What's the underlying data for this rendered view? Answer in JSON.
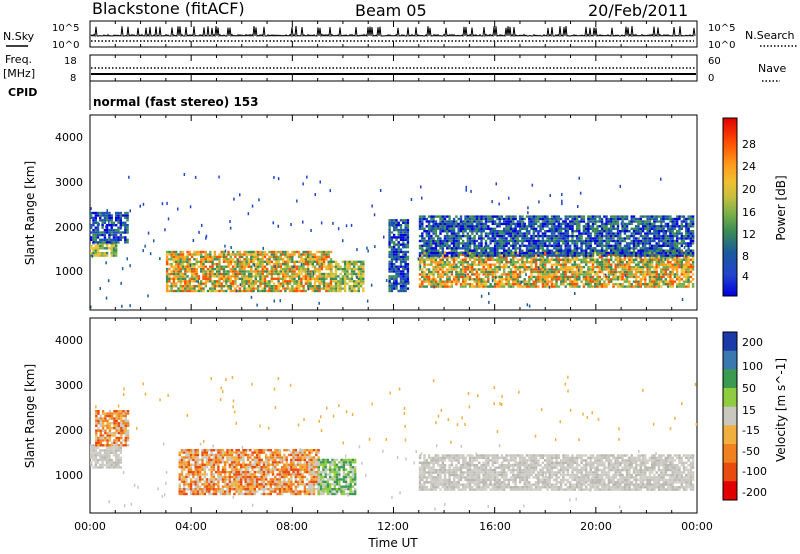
{
  "header": {
    "station": "Blackstone (fitACF)",
    "beam": "Beam 05",
    "date": "20/Feb/2011"
  },
  "panels": {
    "nsky": {
      "label": "N.Sky",
      "ticks": [
        "10^5",
        "10^0"
      ],
      "right_label": "N.Search",
      "right_ticks": [
        "10^5",
        "10^0"
      ]
    },
    "freq": {
      "label_line1": "Freq.",
      "label_line2": "[MHz]",
      "ticks": [
        "18",
        "8"
      ],
      "right_label": "Nave",
      "right_ticks": [
        "60",
        "0"
      ]
    },
    "cpid": {
      "label": "CPID",
      "text": "normal (fast stereo) 153"
    }
  },
  "chart_data": [
    {
      "type": "heatmap",
      "name": "power",
      "ylabel": "Slant Range [km]",
      "yticks": [
        "4000",
        "3000",
        "2000",
        "1000"
      ],
      "ylim": [
        200,
        4600
      ],
      "xlim": [
        0,
        24
      ],
      "colorbar": {
        "label": "Power [dB]",
        "ticks": [
          "28",
          "24",
          "20",
          "16",
          "12",
          "8",
          "4"
        ],
        "colors": [
          "#e00000",
          "#ff5000",
          "#ff9a1a",
          "#f0c030",
          "#c8c040",
          "#78b048",
          "#3a8a55",
          "#1a5aa0",
          "#2244cc",
          "#0000dd"
        ]
      },
      "regions": [
        {
          "t0": 0.0,
          "t1": 1.0,
          "r0": 1400,
          "r1": 1700,
          "level": "med"
        },
        {
          "t0": 0.0,
          "t1": 1.5,
          "r0": 1700,
          "r1": 2400,
          "level": "low"
        },
        {
          "t0": 3.0,
          "t1": 9.5,
          "r0": 600,
          "r1": 1500,
          "level": "high"
        },
        {
          "t0": 9.5,
          "t1": 10.8,
          "r0": 600,
          "r1": 1300,
          "level": "med"
        },
        {
          "t0": 11.8,
          "t1": 12.6,
          "r0": 600,
          "r1": 2200,
          "level": "low"
        },
        {
          "t0": 13.0,
          "t1": 23.8,
          "r0": 700,
          "r1": 1500,
          "level": "high"
        },
        {
          "t0": 13.0,
          "t1": 23.8,
          "r0": 1400,
          "r1": 2300,
          "level": "low"
        }
      ]
    },
    {
      "type": "heatmap",
      "name": "velocity",
      "ylabel": "Slant Range [km]",
      "yticks": [
        "4000",
        "3000",
        "2000",
        "1000"
      ],
      "ylim": [
        200,
        4600
      ],
      "xlim": [
        0,
        24
      ],
      "xlabel": "Time UT",
      "xticks": [
        "00:00",
        "04:00",
        "08:00",
        "12:00",
        "16:00",
        "20:00",
        "00:00"
      ],
      "colorbar": {
        "label": "Velocity [m s^-1]",
        "ticks": [
          "200",
          "100",
          "50",
          "15",
          "-15",
          "-50",
          "-100",
          "-200"
        ],
        "colors": [
          "#1a3aa8",
          "#3a78b0",
          "#3a9a50",
          "#90cc40",
          "#c8c8c0",
          "#f0b040",
          "#f08020",
          "#e84a10",
          "#e00000"
        ]
      },
      "regions": [
        {
          "t0": 0.0,
          "t1": 1.2,
          "r0": 1200,
          "r1": 1700,
          "level": "gray"
        },
        {
          "t0": 0.2,
          "t1": 1.5,
          "r0": 1700,
          "r1": 2500,
          "level": "orange"
        },
        {
          "t0": 3.5,
          "t1": 9.0,
          "r0": 600,
          "r1": 1600,
          "level": "orange"
        },
        {
          "t0": 9.0,
          "t1": 10.5,
          "r0": 600,
          "r1": 1400,
          "level": "green"
        },
        {
          "t0": 13.0,
          "t1": 23.8,
          "r0": 700,
          "r1": 1500,
          "level": "gray"
        }
      ]
    }
  ]
}
